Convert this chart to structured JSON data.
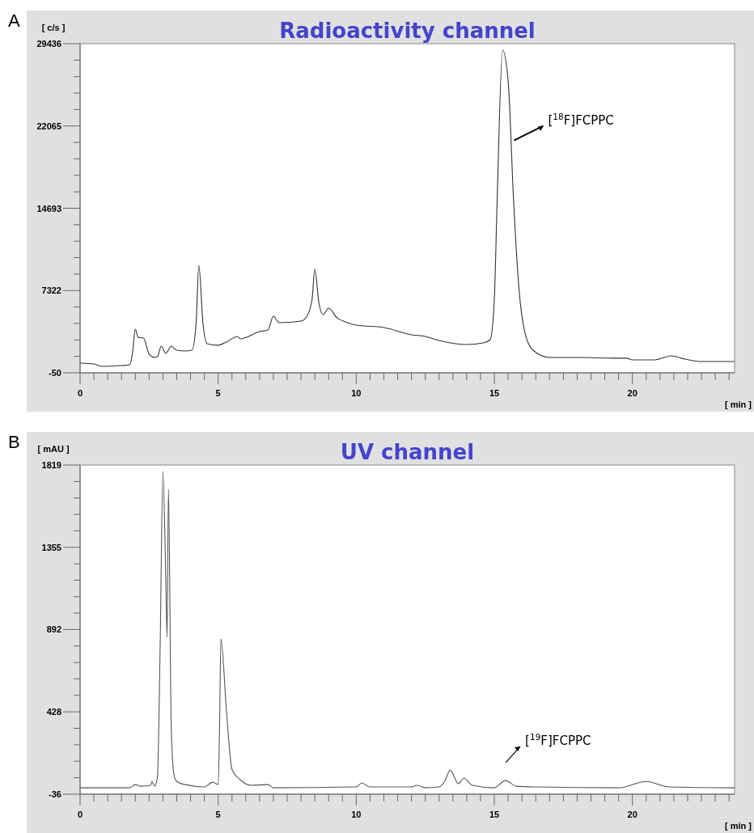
{
  "chart_data": [
    {
      "type": "line",
      "title": "Radioactivity channel",
      "xlabel": "[ min ]",
      "ylabel": "[ c/s ]",
      "color": "#333333",
      "x": [
        0,
        0.5,
        0.8,
        1.5,
        1.8,
        1.9,
        2.0,
        2.1,
        2.3,
        2.5,
        2.7,
        2.8,
        2.94,
        3.1,
        3.3,
        3.5,
        3.8,
        4.05,
        4.2,
        4.3,
        4.45,
        4.6,
        5.0,
        5.3,
        5.7,
        5.8,
        6.5,
        6.8,
        7.0,
        7.2,
        8.0,
        8.2,
        8.4,
        8.5,
        8.65,
        8.8,
        9.0,
        9.3,
        9.6,
        10,
        11,
        12,
        12.5,
        13,
        14,
        14.6,
        14.85,
        15.0,
        15.1,
        15.3,
        15.5,
        15.7,
        15.9,
        16.1,
        16.4,
        17,
        18,
        19.5,
        19.8,
        20.0,
        20.8,
        21.4,
        21.9,
        22.5,
        23.7
      ],
      "values": [
        820,
        750,
        530,
        600,
        680,
        1760,
        3860,
        3140,
        3060,
        1620,
        1330,
        1400,
        2340,
        1690,
        2340,
        1980,
        1910,
        1980,
        4370,
        9590,
        4370,
        2560,
        2420,
        2710,
        3210,
        2990,
        3640,
        3790,
        5020,
        4440,
        4590,
        4950,
        6540,
        9220,
        6180,
        5170,
        5750,
        4880,
        4520,
        4220,
        4010,
        3360,
        3210,
        2850,
        2490,
        2630,
        2920,
        6540,
        15230,
        28860,
        26110,
        15230,
        7260,
        3640,
        1980,
        1330,
        1330,
        1260,
        1260,
        1110,
        1110,
        1470,
        1180,
        960,
        960
      ],
      "xlim": [
        0,
        23.7
      ],
      "ylim": [
        -50,
        29436
      ],
      "xticks": [
        0,
        {
          "value": 0.5,
          "label": null
        },
        {
          "value": 1,
          "label": null
        },
        {
          "value": 1.5,
          "label": null
        },
        {
          "value": 2,
          "label": null
        },
        {
          "value": 2.5,
          "label": null
        },
        {
          "value": 3,
          "label": null
        },
        {
          "value": 3.5,
          "label": null
        },
        {
          "value": 4,
          "label": null
        },
        {
          "value": 4.5,
          "label": null
        },
        5,
        {
          "value": 5.5,
          "label": null
        },
        {
          "value": 6,
          "label": null
        },
        {
          "value": 6.5,
          "label": null
        },
        {
          "value": 7,
          "label": null
        },
        {
          "value": 7.5,
          "label": null
        },
        {
          "value": 8,
          "label": null
        },
        {
          "value": 8.5,
          "label": null
        },
        {
          "value": 9,
          "label": null
        },
        {
          "value": 9.5,
          "label": null
        },
        10,
        {
          "value": 10.5,
          "label": null
        },
        {
          "value": 11,
          "label": null
        },
        {
          "value": 11.5,
          "label": null
        },
        {
          "value": 12,
          "label": null
        },
        {
          "value": 12.5,
          "label": null
        },
        {
          "value": 13,
          "label": null
        },
        {
          "value": 13.5,
          "label": null
        },
        {
          "value": 14,
          "label": null
        },
        {
          "value": 14.5,
          "label": null
        },
        15,
        {
          "value": 15.5,
          "label": null
        },
        {
          "value": 16,
          "label": null
        },
        {
          "value": 16.5,
          "label": null
        },
        {
          "value": 17,
          "label": null
        },
        {
          "value": 17.5,
          "label": null
        },
        {
          "value": 18,
          "label": null
        },
        {
          "value": 18.5,
          "label": null
        },
        {
          "value": 19,
          "label": null
        },
        {
          "value": 19.5,
          "label": null
        },
        20,
        {
          "value": 20.5,
          "label": null
        },
        {
          "value": 21,
          "label": null
        },
        {
          "value": 21.5,
          "label": null
        },
        {
          "value": 22,
          "label": null
        },
        {
          "value": 22.5,
          "label": null
        },
        {
          "value": 23,
          "label": null
        },
        {
          "value": 23.5,
          "label": null
        }
      ],
      "yticks": [
        -50,
        {
          "value": 1424,
          "label": null
        },
        {
          "value": 2899,
          "label": null
        },
        {
          "value": 4373,
          "label": null
        },
        {
          "value": 5848,
          "label": null
        },
        7322,
        {
          "value": 8796,
          "label": null
        },
        {
          "value": 10271,
          "label": null
        },
        {
          "value": 11745,
          "label": null
        },
        {
          "value": 13219,
          "label": null
        },
        14693,
        {
          "value": 16167,
          "label": null
        },
        {
          "value": 17642,
          "label": null
        },
        {
          "value": 19116,
          "label": null
        },
        {
          "value": 20591,
          "label": null
        },
        22065,
        {
          "value": 23539,
          "label": null
        },
        {
          "value": 25013,
          "label": null
        },
        {
          "value": 26488,
          "label": null
        },
        {
          "value": 27962,
          "label": null
        },
        29436
      ],
      "annotations": [
        "A",
        "[$^{18}$F]FCPPC"
      ]
    },
    {
      "type": "line",
      "title": "UV channel",
      "xlabel": "[ min ]",
      "ylabel": "[ mAU ]",
      "color": "#555555",
      "x": [
        0,
        1.8,
        2.0,
        2.2,
        2.55,
        2.6,
        2.7,
        2.8,
        2.9,
        3.0,
        3.1,
        3.15,
        3.2,
        3.3,
        3.4,
        3.5,
        3.8,
        4.5,
        4.8,
        5.0,
        5.05,
        5.1,
        5.3,
        5.5,
        5.8,
        6.2,
        6.8,
        7.0,
        10.0,
        10.2,
        10.5,
        12.0,
        12.2,
        12.5,
        13.0,
        13.2,
        13.4,
        13.7,
        13.9,
        14.2,
        15.0,
        15.4,
        15.8,
        16.5,
        19.5,
        20.5,
        21.3,
        23.7
      ],
      "values": [
        0,
        0,
        18,
        9,
        14,
        36,
        9,
        59,
        808,
        1783,
        1204,
        849,
        1683,
        343,
        72,
        36,
        18,
        5,
        32,
        18,
        343,
        840,
        433,
        104,
        45,
        14,
        18,
        0,
        5,
        27,
        5,
        5,
        14,
        0,
        5,
        36,
        99,
        23,
        54,
        14,
        0,
        41,
        9,
        5,
        0,
        36,
        5,
        0
      ],
      "xlim": [
        0,
        23.7
      ],
      "ylim": [
        -36,
        1819
      ],
      "xticks": [
        0,
        {
          "value": 0.5,
          "label": null
        },
        {
          "value": 1,
          "label": null
        },
        {
          "value": 1.5,
          "label": null
        },
        {
          "value": 2,
          "label": null
        },
        {
          "value": 2.5,
          "label": null
        },
        {
          "value": 3,
          "label": null
        },
        {
          "value": 3.5,
          "label": null
        },
        {
          "value": 4,
          "label": null
        },
        {
          "value": 4.5,
          "label": null
        },
        5,
        {
          "value": 5.5,
          "label": null
        },
        {
          "value": 6,
          "label": null
        },
        {
          "value": 6.5,
          "label": null
        },
        {
          "value": 7,
          "label": null
        },
        {
          "value": 7.5,
          "label": null
        },
        {
          "value": 8,
          "label": null
        },
        {
          "value": 8.5,
          "label": null
        },
        {
          "value": 9,
          "label": null
        },
        {
          "value": 9.5,
          "label": null
        },
        10,
        {
          "value": 10.5,
          "label": null
        },
        {
          "value": 11,
          "label": null
        },
        {
          "value": 11.5,
          "label": null
        },
        {
          "value": 12,
          "label": null
        },
        {
          "value": 12.5,
          "label": null
        },
        {
          "value": 13,
          "label": null
        },
        {
          "value": 13.5,
          "label": null
        },
        {
          "value": 14,
          "label": null
        },
        {
          "value": 14.5,
          "label": null
        },
        15,
        {
          "value": 15.5,
          "label": null
        },
        {
          "value": 16,
          "label": null
        },
        {
          "value": 16.5,
          "label": null
        },
        {
          "value": 17,
          "label": null
        },
        {
          "value": 17.5,
          "label": null
        },
        {
          "value": 18,
          "label": null
        },
        {
          "value": 18.5,
          "label": null
        },
        {
          "value": 19,
          "label": null
        },
        {
          "value": 19.5,
          "label": null
        },
        20,
        {
          "value": 20.5,
          "label": null
        },
        {
          "value": 21,
          "label": null
        },
        {
          "value": 21.5,
          "label": null
        },
        {
          "value": 22,
          "label": null
        },
        {
          "value": 22.5,
          "label": null
        },
        {
          "value": 23,
          "label": null
        },
        {
          "value": 23.5,
          "label": null
        }
      ],
      "yticks": [
        -36,
        {
          "value": 57,
          "label": null
        },
        {
          "value": 150,
          "label": null
        },
        {
          "value": 242,
          "label": null
        },
        {
          "value": 335,
          "label": null
        },
        428,
        {
          "value": 521,
          "label": null
        },
        {
          "value": 614,
          "label": null
        },
        {
          "value": 706,
          "label": null
        },
        {
          "value": 799,
          "label": null
        },
        892,
        {
          "value": 985,
          "label": null
        },
        {
          "value": 1077,
          "label": null
        },
        {
          "value": 1170,
          "label": null
        },
        {
          "value": 1262,
          "label": null
        },
        1355,
        {
          "value": 1448,
          "label": null
        },
        {
          "value": 1541,
          "label": null
        },
        {
          "value": 1633,
          "label": null
        },
        {
          "value": 1726,
          "label": null
        },
        1819
      ],
      "annotations": [
        "B",
        "[$^{19}$F]FCPPC"
      ]
    }
  ]
}
